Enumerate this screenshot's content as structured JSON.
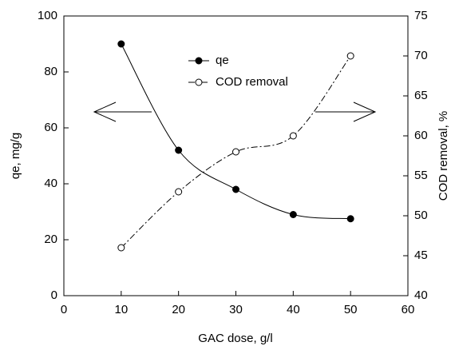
{
  "chart_data": {
    "type": "line",
    "xlabel": "GAC dose, g/l",
    "ylabel": "qe, mg/g",
    "y2label": "COD removal, %",
    "x": [
      10,
      20,
      30,
      40,
      50
    ],
    "series": [
      {
        "name": "qe",
        "color": "#000000",
        "marker": "filled",
        "dash": "solid",
        "axis": "y",
        "values": [
          90,
          52,
          38,
          29,
          27.5
        ]
      },
      {
        "name": "COD removal",
        "color": "#000000",
        "marker": "open",
        "dash": "dashdot",
        "axis": "y2",
        "values": [
          46,
          53,
          58,
          60,
          70
        ]
      }
    ],
    "xlim": [
      0,
      60
    ],
    "xticks": [
      0,
      10,
      20,
      30,
      40,
      50,
      60
    ],
    "ylim": [
      0,
      100
    ],
    "yticks": [
      0,
      20,
      40,
      60,
      80,
      100
    ],
    "y2lim": [
      40,
      75
    ],
    "y2ticks": [
      40,
      45,
      50,
      55,
      60,
      65,
      70,
      75
    ],
    "smooth": true
  }
}
